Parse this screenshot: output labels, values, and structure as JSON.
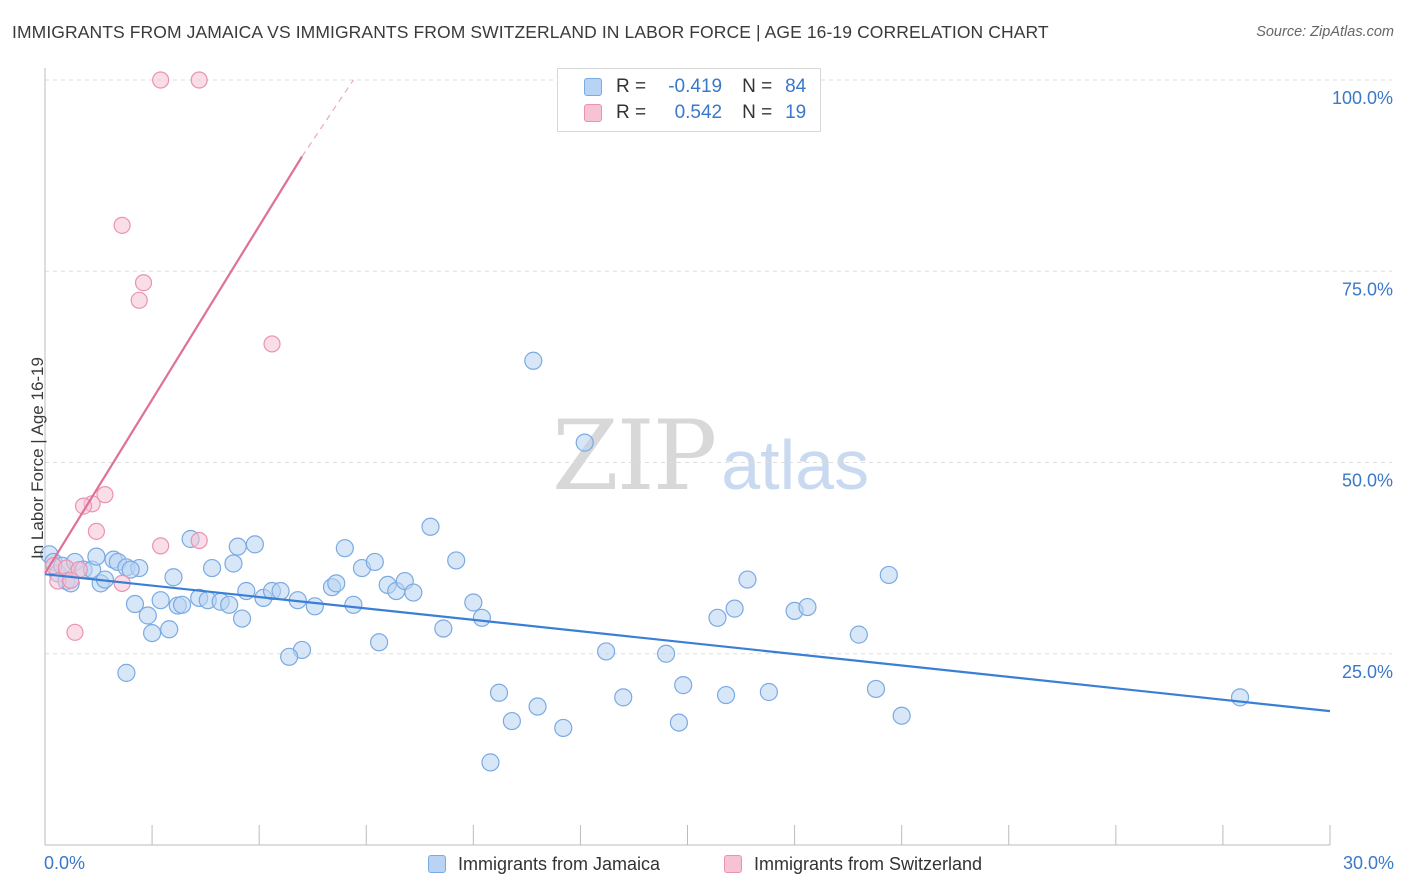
{
  "title": "IMMIGRANTS FROM JAMAICA VS IMMIGRANTS FROM SWITZERLAND IN LABOR FORCE | AGE 16-19 CORRELATION CHART",
  "source": "Source: ZipAtlas.com",
  "watermark": {
    "zip": "ZIP",
    "atlas": "atlas"
  },
  "colors": {
    "jamaica_fill": "#b8d3f3",
    "jamaica_stroke": "#7aaae2",
    "jamaica_line": "#3a7fd5",
    "switzerland_fill": "#f6c2d4",
    "switzerland_stroke": "#ea92b2",
    "switzerland_line": "#e0709a",
    "axis_value": "#3a78c9",
    "grid": "#dddddd"
  },
  "legend": {
    "jamaica": {
      "r_label": "R =",
      "r_value": "-0.419",
      "n_label": "N =",
      "n_value": "84"
    },
    "switzerland": {
      "r_label": "R =",
      "r_value": "0.542",
      "n_label": "N =",
      "n_value": "19"
    }
  },
  "chart_data": {
    "type": "scatter",
    "title": "IMMIGRANTS FROM JAMAICA VS IMMIGRANTS FROM SWITZERLAND IN LABOR FORCE | AGE 16-19 CORRELATION CHART",
    "xlabel": "",
    "ylabel": "In Labor Force | Age 16-19",
    "xlim": [
      0,
      30
    ],
    "ylim": [
      0,
      100
    ],
    "x_tick_labels": [
      "0.0%",
      "30.0%"
    ],
    "y_tick_labels": [
      {
        "value": 100,
        "label": "100.0%"
      },
      {
        "value": 75,
        "label": "75.0%"
      },
      {
        "value": 50,
        "label": "50.0%"
      },
      {
        "value": 25,
        "label": "25.0%"
      }
    ],
    "grid": true,
    "legend_position": "top-center",
    "series": [
      {
        "name": "Immigrants from Jamaica",
        "r": -0.419,
        "n": 84,
        "trend": {
          "x": [
            0,
            30
          ],
          "y": [
            35.4,
            17.5
          ]
        },
        "points": [
          [
            0.1,
            38.0
          ],
          [
            0.2,
            37.0
          ],
          [
            0.3,
            35.5
          ],
          [
            0.4,
            36.5
          ],
          [
            0.5,
            34.5
          ],
          [
            0.6,
            34.2
          ],
          [
            0.7,
            37.0
          ],
          [
            0.9,
            36.0
          ],
          [
            1.1,
            36.0
          ],
          [
            1.2,
            37.7
          ],
          [
            1.3,
            34.2
          ],
          [
            1.4,
            34.7
          ],
          [
            1.6,
            37.3
          ],
          [
            1.7,
            37.0
          ],
          [
            1.9,
            36.3
          ],
          [
            2.1,
            31.5
          ],
          [
            2.2,
            36.2
          ],
          [
            2.4,
            30.0
          ],
          [
            2.5,
            27.7
          ],
          [
            2.7,
            32.0
          ],
          [
            2.9,
            28.2
          ],
          [
            3.0,
            35.0
          ],
          [
            3.1,
            31.3
          ],
          [
            3.2,
            31.4
          ],
          [
            3.4,
            40.0
          ],
          [
            3.6,
            32.3
          ],
          [
            3.8,
            32.0
          ],
          [
            3.9,
            36.2
          ],
          [
            4.1,
            31.8
          ],
          [
            4.3,
            31.4
          ],
          [
            4.4,
            36.8
          ],
          [
            4.5,
            39.0
          ],
          [
            4.6,
            29.6
          ],
          [
            4.7,
            33.2
          ],
          [
            4.9,
            39.3
          ],
          [
            5.1,
            32.3
          ],
          [
            5.3,
            33.2
          ],
          [
            5.5,
            33.2
          ],
          [
            5.9,
            32.0
          ],
          [
            6.0,
            25.5
          ],
          [
            6.3,
            31.2
          ],
          [
            6.7,
            33.7
          ],
          [
            6.8,
            34.2
          ],
          [
            7.0,
            38.8
          ],
          [
            7.2,
            31.4
          ],
          [
            7.4,
            36.2
          ],
          [
            7.7,
            37.0
          ],
          [
            7.8,
            26.5
          ],
          [
            8.0,
            34.0
          ],
          [
            8.2,
            33.2
          ],
          [
            8.4,
            34.5
          ],
          [
            8.6,
            33.0
          ],
          [
            9.0,
            41.6
          ],
          [
            9.3,
            28.3
          ],
          [
            9.6,
            37.2
          ],
          [
            10.0,
            31.7
          ],
          [
            10.2,
            29.7
          ],
          [
            10.6,
            19.9
          ],
          [
            10.9,
            16.2
          ],
          [
            11.4,
            63.3
          ],
          [
            11.5,
            18.1
          ],
          [
            12.1,
            15.3
          ],
          [
            12.6,
            52.6
          ],
          [
            13.1,
            25.3
          ],
          [
            13.5,
            19.3
          ],
          [
            14.5,
            25.0
          ],
          [
            14.8,
            16.0
          ],
          [
            14.9,
            20.9
          ],
          [
            15.7,
            29.7
          ],
          [
            15.9,
            19.6
          ],
          [
            16.1,
            30.9
          ],
          [
            16.4,
            34.7
          ],
          [
            16.9,
            20.0
          ],
          [
            17.5,
            30.6
          ],
          [
            17.8,
            31.1
          ],
          [
            19.0,
            27.5
          ],
          [
            19.4,
            20.4
          ],
          [
            19.7,
            35.3
          ],
          [
            20.0,
            16.9
          ],
          [
            27.9,
            19.3
          ],
          [
            1.9,
            22.5
          ],
          [
            10.4,
            10.8
          ],
          [
            2.0,
            36.0
          ],
          [
            5.7,
            24.6
          ]
        ]
      },
      {
        "name": "Immigrants from Switzerland",
        "r": 0.542,
        "n": 19,
        "trend": {
          "x": [
            0,
            6.0
          ],
          "y": [
            35.5,
            90.0
          ]
        },
        "trend_extension": {
          "x": [
            6.0,
            7.2
          ],
          "y": [
            90.0,
            100.0
          ]
        },
        "points": [
          [
            2.7,
            100.0
          ],
          [
            3.6,
            100.0
          ],
          [
            1.8,
            81.0
          ],
          [
            2.3,
            73.5
          ],
          [
            2.2,
            71.2
          ],
          [
            5.3,
            65.5
          ],
          [
            1.4,
            45.8
          ],
          [
            1.1,
            44.6
          ],
          [
            0.9,
            44.3
          ],
          [
            1.2,
            41.0
          ],
          [
            3.6,
            39.8
          ],
          [
            2.7,
            39.1
          ],
          [
            0.2,
            36.5
          ],
          [
            0.5,
            36.2
          ],
          [
            0.8,
            36.0
          ],
          [
            0.3,
            34.5
          ],
          [
            0.6,
            34.6
          ],
          [
            1.8,
            34.2
          ],
          [
            0.7,
            27.8
          ]
        ]
      }
    ]
  },
  "bottom_legend": {
    "jamaica_label": "Immigrants from Jamaica",
    "switzerland_label": "Immigrants from Switzerland"
  }
}
